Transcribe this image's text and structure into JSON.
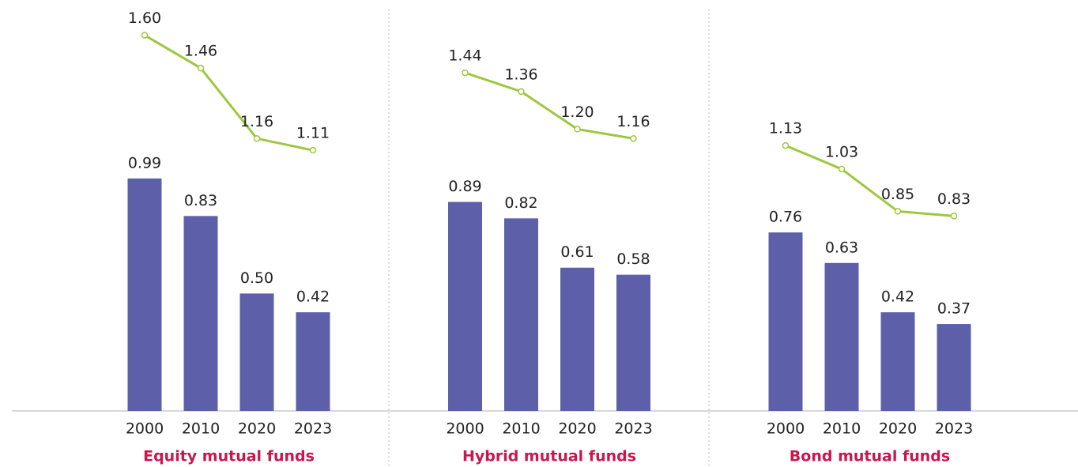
{
  "chart_data": [
    {
      "type": "bar",
      "title": "Equity mutual funds",
      "categories": [
        "2000",
        "2010",
        "2020",
        "2023"
      ],
      "ylim": [
        0,
        1.75
      ],
      "series": [
        {
          "type": "bar",
          "color": "#5d5fa9",
          "values": [
            0.99,
            0.83,
            0.5,
            0.42
          ],
          "value_labels": [
            "0.99",
            "0.83",
            "0.50",
            "0.42"
          ]
        },
        {
          "type": "line",
          "color": "#9dc83e",
          "values": [
            1.6,
            1.46,
            1.16,
            1.11
          ],
          "value_labels": [
            "1.60",
            "1.46",
            "1.16",
            "1.11"
          ]
        }
      ]
    },
    {
      "type": "bar",
      "title": "Hybrid mutual funds",
      "categories": [
        "2000",
        "2010",
        "2020",
        "2023"
      ],
      "ylim": [
        0,
        1.75
      ],
      "series": [
        {
          "type": "bar",
          "color": "#5d5fa9",
          "values": [
            0.89,
            0.82,
            0.61,
            0.58
          ],
          "value_labels": [
            "0.89",
            "0.82",
            "0.61",
            "0.58"
          ]
        },
        {
          "type": "line",
          "color": "#9dc83e",
          "values": [
            1.44,
            1.36,
            1.2,
            1.16
          ],
          "value_labels": [
            "1.44",
            "1.36",
            "1.20",
            "1.16"
          ]
        }
      ]
    },
    {
      "type": "bar",
      "title": "Bond mutual funds",
      "categories": [
        "2000",
        "2010",
        "2020",
        "2023"
      ],
      "ylim": [
        0,
        1.75
      ],
      "series": [
        {
          "type": "bar",
          "color": "#5d5fa9",
          "values": [
            0.76,
            0.63,
            0.42,
            0.37
          ],
          "value_labels": [
            "0.76",
            "0.63",
            "0.42",
            "0.37"
          ]
        },
        {
          "type": "line",
          "color": "#9dc83e",
          "values": [
            1.13,
            1.03,
            0.85,
            0.83
          ],
          "value_labels": [
            "1.13",
            "1.03",
            "0.85",
            "0.83"
          ]
        }
      ]
    }
  ]
}
